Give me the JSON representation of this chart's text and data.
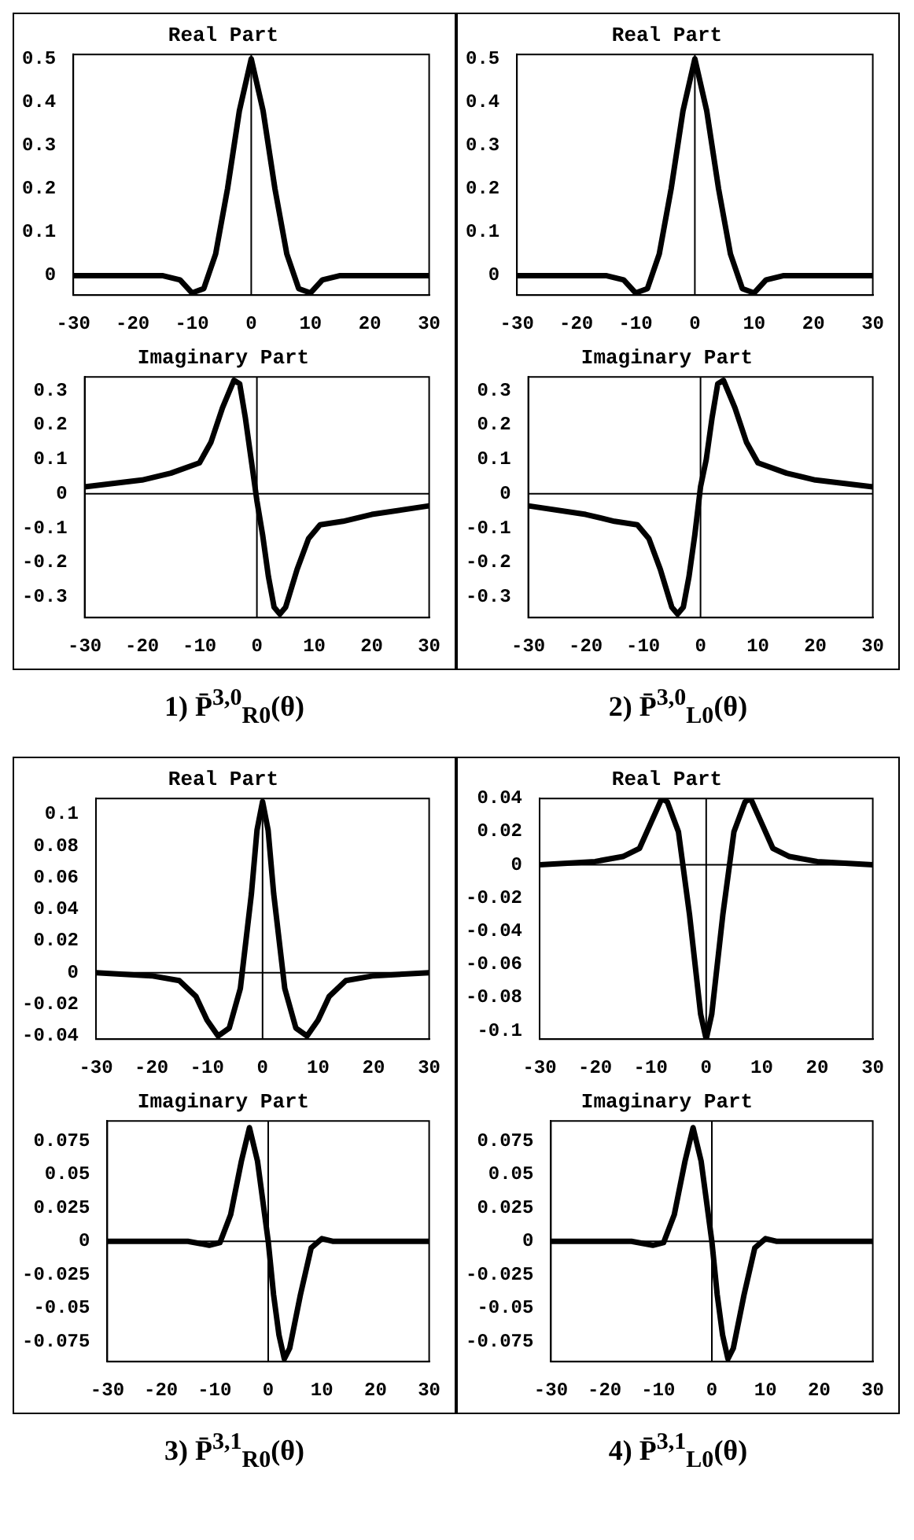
{
  "chart_data": [
    {
      "type": "line",
      "title": "Real Part",
      "x": [
        -30,
        -15,
        -12,
        -10,
        -8,
        -6,
        -4,
        -2,
        0,
        2,
        4,
        6,
        8,
        10,
        12,
        15,
        30
      ],
      "series": [
        {
          "color": "#000000",
          "values": [
            0,
            0,
            -0.01,
            -0.04,
            -0.03,
            0.05,
            0.2,
            0.38,
            0.5,
            0.38,
            0.2,
            0.05,
            -0.03,
            -0.04,
            -0.01,
            0,
            0
          ]
        }
      ],
      "xlim": [
        -30,
        30
      ],
      "ylim": [
        -0.045,
        0.51
      ],
      "xticks": [
        -30,
        -20,
        -10,
        0,
        10,
        20,
        30
      ],
      "yticks": [
        0,
        0.1,
        0.2,
        0.3,
        0.4,
        0.5
      ],
      "marker": "none",
      "line_style": "solid",
      "ref_lines": [
        {
          "axis": "x",
          "value": 0,
          "color": "#000000"
        }
      ]
    },
    {
      "type": "line",
      "title": "Imaginary Part",
      "x": [
        -30,
        -20,
        -15,
        -10,
        -8,
        -6,
        -4,
        -3,
        -2,
        -1,
        0,
        1,
        2,
        3,
        4,
        5,
        7,
        9,
        11,
        15,
        20,
        30
      ],
      "series": [
        {
          "color": "#000000",
          "values": [
            0.02,
            0.04,
            0.06,
            0.09,
            0.15,
            0.25,
            0.33,
            0.32,
            0.22,
            0.1,
            -0.02,
            -0.12,
            -0.24,
            -0.33,
            -0.35,
            -0.33,
            -0.22,
            -0.13,
            -0.09,
            -0.08,
            -0.06,
            -0.035
          ]
        }
      ],
      "xlim": [
        -30,
        30
      ],
      "ylim": [
        -0.36,
        0.34
      ],
      "xticks": [
        -30,
        -20,
        -10,
        0,
        10,
        20,
        30
      ],
      "yticks": [
        -0.3,
        -0.2,
        -0.1,
        0,
        0.1,
        0.2,
        0.3
      ],
      "marker": "none",
      "line_style": "solid",
      "ref_lines": [
        {
          "axis": "x",
          "value": 0,
          "color": "#000000"
        },
        {
          "axis": "y",
          "value": 0,
          "color": "#000000"
        }
      ],
      "annotations": [
        "1) P̄$^{3,0}$$_{R0}$(θ)"
      ]
    },
    {
      "type": "line",
      "title": "Real Part",
      "x": [
        -30,
        -15,
        -12,
        -10,
        -8,
        -6,
        -4,
        -2,
        0,
        2,
        4,
        6,
        8,
        10,
        12,
        15,
        30
      ],
      "series": [
        {
          "color": "#000000",
          "values": [
            0,
            0,
            -0.01,
            -0.04,
            -0.03,
            0.05,
            0.2,
            0.38,
            0.5,
            0.38,
            0.2,
            0.05,
            -0.03,
            -0.04,
            -0.01,
            0,
            0
          ]
        }
      ],
      "xlim": [
        -30,
        30
      ],
      "ylim": [
        -0.045,
        0.51
      ],
      "xticks": [
        -30,
        -20,
        -10,
        0,
        10,
        20,
        30
      ],
      "yticks": [
        0,
        0.1,
        0.2,
        0.3,
        0.4,
        0.5
      ],
      "marker": "none",
      "line_style": "solid",
      "ref_lines": [
        {
          "axis": "x",
          "value": 0,
          "color": "#000000"
        }
      ]
    },
    {
      "type": "line",
      "title": "Imaginary Part",
      "x": [
        -30,
        -20,
        -15,
        -11,
        -9,
        -7,
        -5,
        -4,
        -3,
        -2,
        -1,
        0,
        1,
        2,
        3,
        4,
        6,
        8,
        10,
        15,
        20,
        30
      ],
      "series": [
        {
          "color": "#000000",
          "values": [
            -0.035,
            -0.06,
            -0.08,
            -0.09,
            -0.13,
            -0.22,
            -0.33,
            -0.35,
            -0.33,
            -0.24,
            -0.12,
            0.02,
            0.1,
            0.22,
            0.32,
            0.33,
            0.25,
            0.15,
            0.09,
            0.06,
            0.04,
            0.02
          ]
        }
      ],
      "xlim": [
        -30,
        30
      ],
      "ylim": [
        -0.36,
        0.34
      ],
      "xticks": [
        -30,
        -20,
        -10,
        0,
        10,
        20,
        30
      ],
      "yticks": [
        -0.3,
        -0.2,
        -0.1,
        0,
        0.1,
        0.2,
        0.3
      ],
      "marker": "none",
      "line_style": "solid",
      "ref_lines": [
        {
          "axis": "x",
          "value": 0,
          "color": "#000000"
        },
        {
          "axis": "y",
          "value": 0,
          "color": "#000000"
        }
      ],
      "annotations": [
        "2) P̄$^{3,0}$$_{L0}$(θ)"
      ]
    },
    {
      "type": "line",
      "title": "Real Part",
      "x": [
        -30,
        -20,
        -15,
        -12,
        -10,
        -8,
        -6,
        -4,
        -2,
        -1,
        0,
        1,
        2,
        4,
        6,
        8,
        10,
        12,
        15,
        20,
        30
      ],
      "series": [
        {
          "color": "#000000",
          "values": [
            0,
            -0.002,
            -0.005,
            -0.015,
            -0.03,
            -0.04,
            -0.035,
            -0.01,
            0.05,
            0.09,
            0.108,
            0.09,
            0.05,
            -0.01,
            -0.035,
            -0.04,
            -0.03,
            -0.015,
            -0.005,
            -0.002,
            0
          ]
        }
      ],
      "xlim": [
        -30,
        30
      ],
      "ylim": [
        -0.042,
        0.11
      ],
      "xticks": [
        -30,
        -20,
        -10,
        0,
        10,
        20,
        30
      ],
      "yticks": [
        -0.04,
        -0.02,
        0,
        0.02,
        0.04,
        0.06,
        0.08,
        0.1
      ],
      "marker": "none",
      "line_style": "solid",
      "ref_lines": [
        {
          "axis": "x",
          "value": 0,
          "color": "#000000"
        },
        {
          "axis": "y",
          "value": 0,
          "color": "#000000"
        }
      ]
    },
    {
      "type": "line",
      "title": "Imaginary Part",
      "x": [
        -30,
        -15,
        -11,
        -9,
        -7,
        -5,
        -3.5,
        -2,
        -1,
        0,
        1,
        2,
        3,
        4,
        6,
        8,
        10,
        12,
        30
      ],
      "series": [
        {
          "color": "#000000",
          "values": [
            0,
            0,
            -0.003,
            -0.001,
            0.02,
            0.06,
            0.085,
            0.06,
            0.03,
            0,
            -0.04,
            -0.07,
            -0.088,
            -0.08,
            -0.04,
            -0.005,
            0.002,
            0,
            0
          ]
        }
      ],
      "xlim": [
        -30,
        30
      ],
      "ylim": [
        -0.09,
        0.09
      ],
      "xticks": [
        -30,
        -20,
        -10,
        0,
        10,
        20,
        30
      ],
      "yticks": [
        -0.075,
        -0.05,
        -0.025,
        0,
        0.025,
        0.05,
        0.075
      ],
      "marker": "none",
      "line_style": "solid",
      "ref_lines": [
        {
          "axis": "x",
          "value": 0,
          "color": "#000000"
        },
        {
          "axis": "y",
          "value": 0,
          "color": "#000000"
        }
      ],
      "annotations": [
        "3) P̄$^{3,1}$$_{R0}$(θ)"
      ]
    },
    {
      "type": "line",
      "title": "Real Part",
      "x": [
        -30,
        -20,
        -15,
        -12,
        -10,
        -8,
        -7,
        -5,
        -3,
        -1,
        0,
        1,
        3,
        5,
        7,
        8,
        10,
        12,
        15,
        20,
        30
      ],
      "series": [
        {
          "color": "#000000",
          "values": [
            0,
            0.002,
            0.005,
            0.01,
            0.025,
            0.04,
            0.038,
            0.02,
            -0.03,
            -0.09,
            -0.105,
            -0.09,
            -0.03,
            0.02,
            0.038,
            0.04,
            0.025,
            0.01,
            0.005,
            0.002,
            0
          ]
        }
      ],
      "xlim": [
        -30,
        30
      ],
      "ylim": [
        -0.105,
        0.04
      ],
      "xticks": [
        -30,
        -20,
        -10,
        0,
        10,
        20,
        30
      ],
      "yticks": [
        -0.1,
        -0.08,
        -0.06,
        -0.04,
        -0.02,
        0,
        0.02,
        0.04
      ],
      "marker": "none",
      "line_style": "solid",
      "ref_lines": [
        {
          "axis": "x",
          "value": 0,
          "color": "#000000"
        },
        {
          "axis": "y",
          "value": 0,
          "color": "#000000"
        }
      ]
    },
    {
      "type": "line",
      "title": "Imaginary Part",
      "x": [
        -30,
        -15,
        -11,
        -9,
        -7,
        -5,
        -3.5,
        -2,
        -1,
        0,
        1,
        2,
        3,
        4,
        6,
        8,
        10,
        12,
        30
      ],
      "series": [
        {
          "color": "#000000",
          "values": [
            0,
            0,
            -0.003,
            -0.001,
            0.02,
            0.06,
            0.085,
            0.06,
            0.03,
            0,
            -0.04,
            -0.07,
            -0.088,
            -0.08,
            -0.04,
            -0.005,
            0.002,
            0,
            0
          ]
        }
      ],
      "xlim": [
        -30,
        30
      ],
      "ylim": [
        -0.09,
        0.09
      ],
      "xticks": [
        -30,
        -20,
        -10,
        0,
        10,
        20,
        30
      ],
      "yticks": [
        -0.075,
        -0.05,
        -0.025,
        0,
        0.025,
        0.05,
        0.075
      ],
      "marker": "none",
      "line_style": "solid",
      "ref_lines": [
        {
          "axis": "x",
          "value": 0,
          "color": "#000000"
        },
        {
          "axis": "y",
          "value": 0,
          "color": "#000000"
        }
      ],
      "annotations": [
        "4) P̄$^{3,1}$$_{L0}$(θ)"
      ]
    }
  ]
}
